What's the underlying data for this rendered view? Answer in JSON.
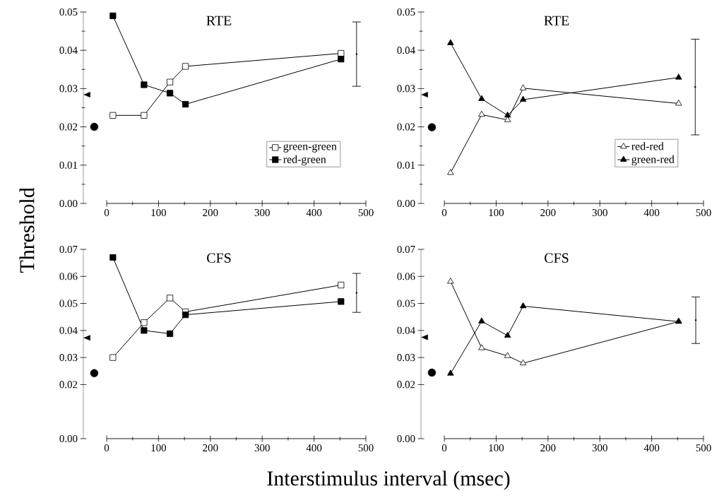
{
  "chart_data": [
    {
      "type": "line",
      "title": "RTE",
      "ylabel": "Threshold",
      "x": [
        12,
        72,
        122,
        152,
        452
      ],
      "xlim": [
        -45,
        500
      ],
      "xticks": [
        0,
        100,
        200,
        300,
        400,
        500
      ],
      "ylim": [
        0,
        0.05
      ],
      "yticks": [
        {
          "value": 0,
          "label": "0.00"
        },
        {
          "value": 0.01,
          "label": "0.01"
        },
        {
          "value": 0.02,
          "label": "0.02"
        },
        {
          "value": 0.03,
          "label": "0.03"
        },
        {
          "value": 0.04,
          "label": "0.04"
        },
        {
          "value": 0.05,
          "label": "0.05"
        }
      ],
      "legend": "bottom right",
      "line_style": "solid",
      "series": [
        {
          "type": "scatter",
          "color": "#000000",
          "marker": "triangle",
          "x": [
            -38
          ],
          "values": [
            0.0284
          ]
        },
        {
          "name": "green-green",
          "color": "#000000",
          "marker": "square",
          "values": [
            0.023,
            0.023,
            0.0317,
            0.0358,
            0.0392
          ]
        },
        {
          "name": "red-green",
          "color": "#000000",
          "marker": "square",
          "values": [
            0.049,
            0.031,
            0.0288,
            0.0259,
            0.0377
          ]
        },
        {
          "type": "scatter",
          "color": "#000000",
          "marker": "circle",
          "x": [
            -24
          ],
          "values": [
            0.02
          ]
        },
        {
          "type": "scatter",
          "color": "#000000",
          "marker": "none",
          "x": [
            482
          ],
          "values": [
            0.039
          ],
          "errors": [
            0.0084
          ]
        }
      ]
    },
    {
      "type": "line",
      "title": "RTE",
      "x": [
        12,
        72,
        122,
        152,
        452
      ],
      "xlim": [
        -45,
        500
      ],
      "xticks": [
        0,
        100,
        200,
        300,
        400,
        500
      ],
      "ylim": [
        0,
        0.05
      ],
      "yticks": [
        {
          "value": 0,
          "label": "0.00"
        },
        {
          "value": 0.01,
          "label": "0.01"
        },
        {
          "value": 0.02,
          "label": "0.02"
        },
        {
          "value": 0.03,
          "label": "0.03"
        },
        {
          "value": 0.04,
          "label": "0.04"
        },
        {
          "value": 0.05,
          "label": "0.05"
        }
      ],
      "legend": "bottom right",
      "line_style": "solid",
      "series": [
        {
          "type": "scatter",
          "color": "#000000",
          "marker": "triangle",
          "x": [
            -38
          ],
          "values": [
            0.0284
          ]
        },
        {
          "name": "red-red",
          "color": "#000000",
          "marker": "triangle",
          "values": [
            0.008,
            0.0232,
            0.0218,
            0.0301,
            0.0261
          ]
        },
        {
          "name": "green-red",
          "color": "#000000",
          "marker": "triangle",
          "values": [
            0.0419,
            0.0273,
            0.023,
            0.0271,
            0.0329
          ]
        },
        {
          "type": "scatter",
          "color": "#000000",
          "marker": "circle",
          "x": [
            -24
          ],
          "values": [
            0.0199
          ]
        },
        {
          "type": "scatter",
          "color": "#000000",
          "marker": "none",
          "x": [
            484
          ],
          "values": [
            0.0304
          ],
          "errors": [
            0.0125
          ]
        }
      ]
    },
    {
      "type": "line",
      "title": "CFS",
      "xlabel": "Interstimulus interval (msec)",
      "x": [
        12,
        72,
        122,
        152,
        452
      ],
      "xlim": [
        -45,
        500
      ],
      "xticks": [
        0,
        100,
        200,
        300,
        400,
        500
      ],
      "ylim": [
        0,
        0.07
      ],
      "yticks": [
        {
          "value": 0,
          "label": "0.00"
        },
        {
          "value": 0.02,
          "label": "0.02"
        },
        {
          "value": 0.03,
          "label": "0.03"
        },
        {
          "value": 0.04,
          "label": "0.04"
        },
        {
          "value": 0.05,
          "label": "0.05"
        },
        {
          "value": 0.06,
          "label": "0.06"
        },
        {
          "value": 0.07,
          "label": "0.07"
        }
      ],
      "legend": false,
      "line_style": "solid",
      "series": [
        {
          "type": "scatter",
          "color": "#000000",
          "marker": "triangle",
          "x": [
            -38
          ],
          "values": [
            0.0373
          ]
        },
        {
          "color": "#000000",
          "marker": "square",
          "values": [
            0.03,
            0.0429,
            0.052,
            0.0469,
            0.0568
          ]
        },
        {
          "color": "#000000",
          "marker": "square",
          "values": [
            0.067,
            0.04,
            0.0388,
            0.0458,
            0.0507
          ]
        },
        {
          "type": "scatter",
          "color": "#000000",
          "marker": "circle",
          "x": [
            -24
          ],
          "values": [
            0.0242
          ]
        },
        {
          "type": "scatter",
          "color": "#000000",
          "marker": "none",
          "x": [
            482
          ],
          "values": [
            0.0539
          ],
          "errors": [
            0.0072
          ]
        }
      ]
    },
    {
      "type": "line",
      "title": "CFS",
      "x": [
        12,
        72,
        122,
        152,
        452
      ],
      "xlim": [
        -45,
        500
      ],
      "xticks": [
        0,
        100,
        200,
        300,
        400,
        500
      ],
      "ylim": [
        0,
        0.07
      ],
      "yticks": [
        {
          "value": 0,
          "label": "0.00"
        },
        {
          "value": 0.02,
          "label": "0.02"
        },
        {
          "value": 0.03,
          "label": "0.03"
        },
        {
          "value": 0.04,
          "label": "0.04"
        },
        {
          "value": 0.05,
          "label": "0.05"
        },
        {
          "value": 0.06,
          "label": "0.06"
        },
        {
          "value": 0.07,
          "label": "0.07"
        }
      ],
      "legend": false,
      "line_style": "solid",
      "series": [
        {
          "type": "scatter",
          "color": "#000000",
          "marker": "triangle",
          "x": [
            -38
          ],
          "values": [
            0.0375
          ]
        },
        {
          "color": "#000000",
          "marker": "triangle",
          "values": [
            0.0581,
            0.0335,
            0.0306,
            0.0279,
            0.0433
          ]
        },
        {
          "color": "#000000",
          "marker": "triangle",
          "values": [
            0.0241,
            0.0434,
            0.0381,
            0.049,
            0.0433
          ]
        },
        {
          "type": "scatter",
          "color": "#000000",
          "marker": "circle",
          "x": [
            -24
          ],
          "values": [
            0.0244
          ]
        },
        {
          "type": "scatter",
          "color": "#000000",
          "marker": "none",
          "x": [
            485
          ],
          "values": [
            0.0438
          ],
          "errors": [
            0.0086
          ]
        }
      ]
    }
  ]
}
